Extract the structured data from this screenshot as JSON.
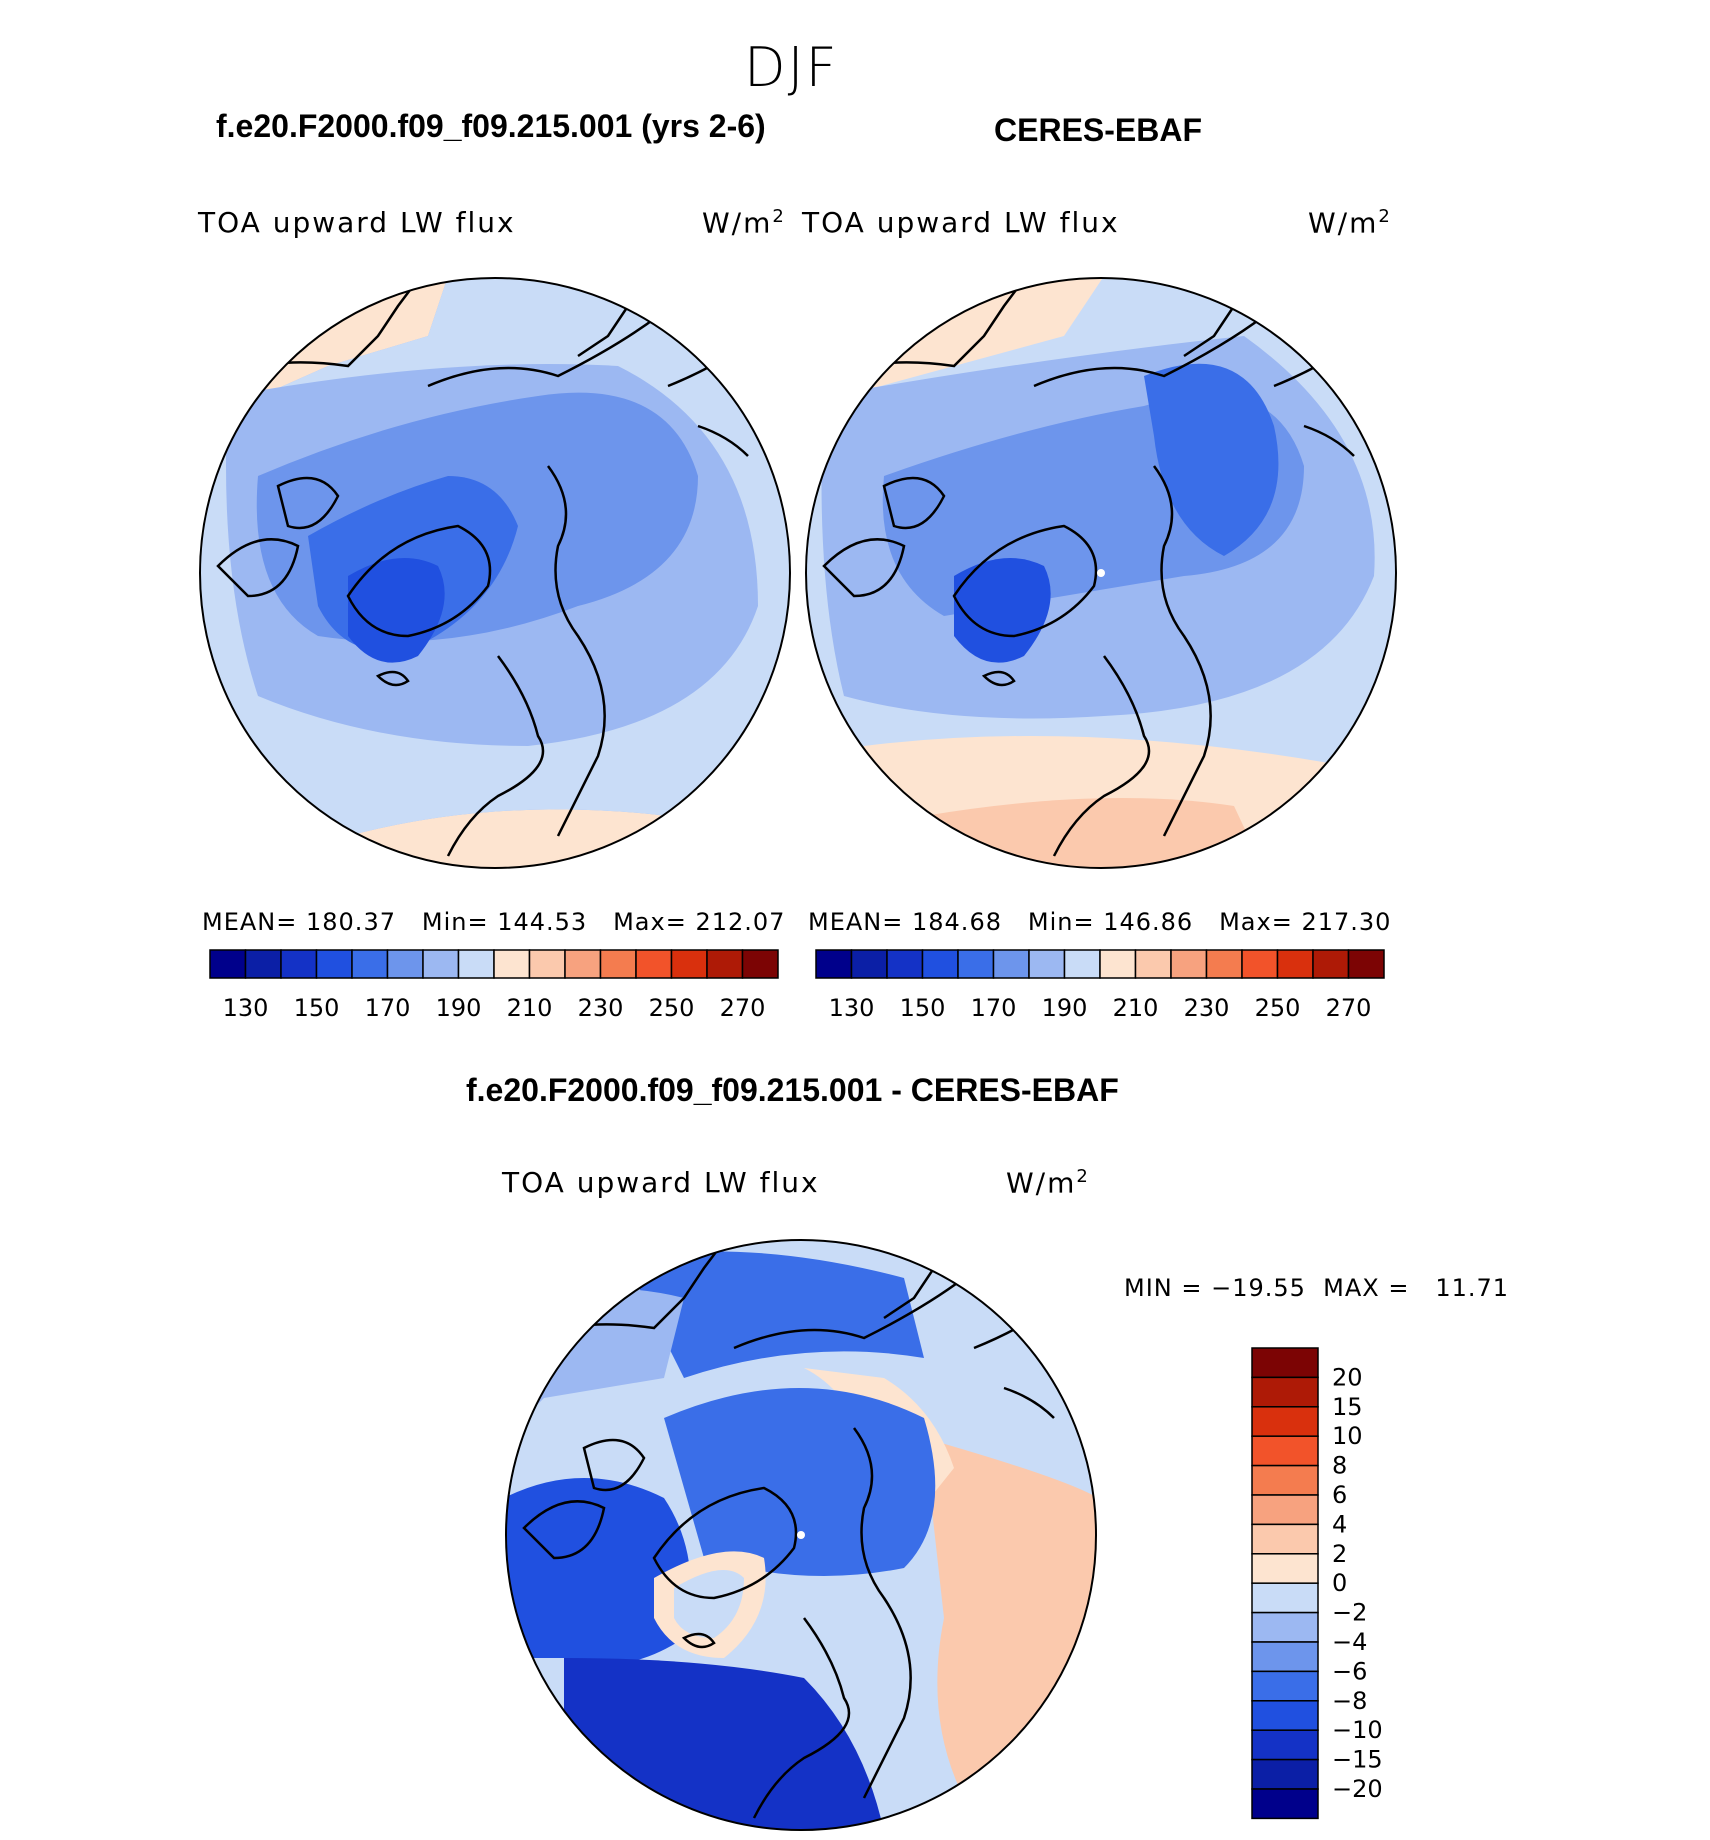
{
  "season": "DJF",
  "panels": {
    "model": {
      "title": "f.e20.F2000.f09_f09.215.001 (yrs 2-6)",
      "variable": "TOA upward LW flux",
      "units": "W/m",
      "units_sup": "2",
      "mean_label": "MEAN=",
      "mean": "180.37",
      "min_label": "Min=",
      "min": "144.53",
      "max_label": "Max=",
      "max": "212.07"
    },
    "obs": {
      "title": "CERES-EBAF",
      "variable": "TOA upward LW flux",
      "units": "W/m",
      "units_sup": "2",
      "mean_label": "MEAN=",
      "mean": "184.68",
      "min_label": "Min=",
      "min": "146.86",
      "max_label": "Max=",
      "max": "217.30"
    },
    "diff": {
      "title": "f.e20.F2000.f09_f09.215.001 - CERES-EBAF",
      "variable": "TOA upward LW flux",
      "units": "W/m",
      "units_sup": "2",
      "minmax_text": "MIN = −19.55  MAX =   11.71"
    }
  },
  "chart_data": [
    {
      "type": "heatmap",
      "title": "f.e20.F2000.f09_f09.215.001 (yrs 2-6)",
      "projection": "north polar stereographic",
      "variable": "TOA upward LW flux",
      "units": "W/m^2",
      "stats": {
        "mean": 180.37,
        "min": 144.53,
        "max": 212.07
      },
      "colorbar": {
        "ticks": [
          130,
          150,
          170,
          190,
          210,
          230,
          250,
          270
        ],
        "levels": [
          120,
          130,
          140,
          150,
          160,
          170,
          180,
          190,
          200,
          210,
          220,
          230,
          240,
          250,
          260,
          270,
          280
        ],
        "colors": [
          "#00008b",
          "#0b1fa6",
          "#1432c6",
          "#2050e0",
          "#3a6ee8",
          "#6d95ec",
          "#9cb8f2",
          "#c9dcf7",
          "#fde4d0",
          "#fbc9ad",
          "#f7a27f",
          "#f47c4f",
          "#f2532a",
          "#d9300d",
          "#ae1a06",
          "#7c0404"
        ]
      }
    },
    {
      "type": "heatmap",
      "title": "CERES-EBAF",
      "projection": "north polar stereographic",
      "variable": "TOA upward LW flux",
      "units": "W/m^2",
      "stats": {
        "mean": 184.68,
        "min": 146.86,
        "max": 217.3
      },
      "colorbar": {
        "ticks": [
          130,
          150,
          170,
          190,
          210,
          230,
          250,
          270
        ],
        "levels": [
          120,
          130,
          140,
          150,
          160,
          170,
          180,
          190,
          200,
          210,
          220,
          230,
          240,
          250,
          260,
          270,
          280
        ],
        "colors": [
          "#00008b",
          "#0b1fa6",
          "#1432c6",
          "#2050e0",
          "#3a6ee8",
          "#6d95ec",
          "#9cb8f2",
          "#c9dcf7",
          "#fde4d0",
          "#fbc9ad",
          "#f7a27f",
          "#f47c4f",
          "#f2532a",
          "#d9300d",
          "#ae1a06",
          "#7c0404"
        ]
      }
    },
    {
      "type": "heatmap",
      "title": "f.e20.F2000.f09_f09.215.001 - CERES-EBAF",
      "projection": "north polar stereographic",
      "variable": "TOA upward LW flux",
      "units": "W/m^2",
      "stats": {
        "min": -19.55,
        "max": 11.71
      },
      "colorbar": {
        "orientation": "vertical",
        "ticks": [
          "20",
          "15",
          "10",
          "8",
          "6",
          "4",
          "2",
          "0",
          "−2",
          "−4",
          "−6",
          "−8",
          "−10",
          "−15",
          "−20"
        ],
        "colors": [
          "#7c0404",
          "#ae1a06",
          "#d9300d",
          "#f2532a",
          "#f47c4f",
          "#f7a27f",
          "#fbc9ad",
          "#fde4d0",
          "#c9dcf7",
          "#9cb8f2",
          "#6d95ec",
          "#3a6ee8",
          "#2050e0",
          "#1432c6",
          "#0b1fa6",
          "#00008b"
        ]
      }
    }
  ]
}
